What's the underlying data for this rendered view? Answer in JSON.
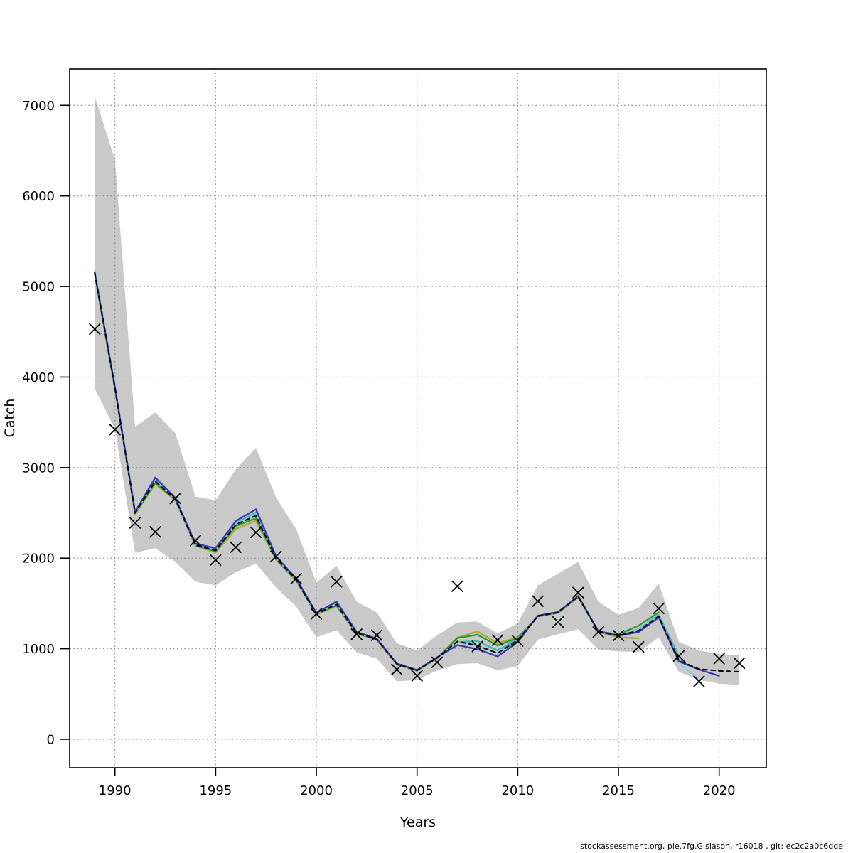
{
  "footer": {
    "text": "stockassessment.org, ple.7fg.Gislason, r16018 , git: ec2c2a0c6dde"
  },
  "chart_data": {
    "type": "line",
    "title": "",
    "xlabel": "Years",
    "ylabel": "Catch",
    "x_ticks": [
      1990,
      1995,
      2000,
      2005,
      2010,
      2015,
      2020
    ],
    "y_ticks": [
      0,
      1000,
      2000,
      3000,
      4000,
      5000,
      6000,
      7000
    ],
    "xlim": [
      1987.7,
      2022.3
    ],
    "ylim": [
      -320,
      7400
    ],
    "grid": "dotted gray, at every tick",
    "legend_position": "none",
    "colors": {
      "band": "#c9c9c9",
      "grid": "#8c8c8c",
      "frame": "#000000",
      "marker": "#000000"
    },
    "band": {
      "name": "confidence-band",
      "color": "#c9c9c9",
      "years": [
        1989,
        1990,
        1991,
        1992,
        1993,
        1994,
        1995,
        1996,
        1997,
        1998,
        1999,
        2000,
        2001,
        2002,
        2003,
        2004,
        2005,
        2006,
        2007,
        2008,
        2009,
        2010,
        2011,
        2012,
        2013,
        2014,
        2015,
        2016,
        2017,
        2018,
        2019,
        2020,
        2021
      ],
      "lower": [
        3870,
        3430,
        2060,
        2110,
        1960,
        1740,
        1700,
        1845,
        1940,
        1675,
        1465,
        1125,
        1205,
        960,
        890,
        640,
        655,
        760,
        830,
        840,
        760,
        810,
        1100,
        1160,
        1215,
        990,
        970,
        965,
        1125,
        745,
        655,
        615,
        600
      ],
      "upper": [
        7100,
        6400,
        3450,
        3610,
        3380,
        2680,
        2640,
        2980,
        3220,
        2670,
        2320,
        1730,
        1915,
        1520,
        1400,
        1060,
        980,
        1150,
        1290,
        1300,
        1170,
        1280,
        1700,
        1830,
        1960,
        1520,
        1375,
        1450,
        1720,
        1075,
        980,
        940,
        930
      ]
    },
    "observations": {
      "name": "observed-catch-points",
      "marker": "x",
      "color": "#000000",
      "years": [
        1989,
        1990,
        1991,
        1992,
        1993,
        1994,
        1995,
        1996,
        1997,
        1998,
        1999,
        2000,
        2001,
        2002,
        2003,
        2004,
        2005,
        2006,
        2007,
        2008,
        2009,
        2010,
        2011,
        2012,
        2013,
        2014,
        2015,
        2016,
        2017,
        2018,
        2019,
        2020,
        2021
      ],
      "values": [
        4530,
        3420,
        2390,
        2290,
        2660,
        2195,
        1980,
        2120,
        2285,
        2020,
        1775,
        1385,
        1740,
        1160,
        1150,
        770,
        700,
        850,
        1690,
        1025,
        1095,
        1085,
        1525,
        1295,
        1620,
        1185,
        1145,
        1020,
        1445,
        920,
        640,
        890,
        840
      ]
    },
    "series": [
      {
        "name": "run-ending-2016-olive",
        "color": "#a9a93a",
        "style": "solid",
        "start_year": 1989,
        "values": [
          5135,
          3870,
          2489,
          2816,
          2641,
          2136,
          2062,
          2322,
          2412,
          1983,
          1749,
          1377,
          1470,
          1166,
          1097,
          826,
          755,
          895,
          1124,
          1190,
          1060,
          1130,
          1356,
          1394,
          1593,
          1184,
          1126,
          1115
        ]
      },
      {
        "name": "run-ending-2017-green",
        "color": "#2e9b2e",
        "style": "solid",
        "start_year": 1989,
        "values": [
          5140,
          3875,
          2494,
          2832,
          2645,
          2140,
          2076,
          2355,
          2440,
          1992,
          1755,
          1381,
          1481,
          1171,
          1101,
          828,
          757,
          897,
          1118,
          1155,
          1035,
          1118,
          1358,
          1397,
          1571,
          1187,
          1160,
          1255,
          1400
        ]
      },
      {
        "name": "run-ending-2018-turquoise",
        "color": "#3cb8b8",
        "style": "solid",
        "start_year": 1989,
        "values": [
          5155,
          3885,
          2505,
          2868,
          2657,
          2152,
          2098,
          2388,
          2505,
          2012,
          1768,
          1391,
          1507,
          1181,
          1108,
          833,
          763,
          903,
          1072,
          1085,
          980,
          1105,
          1363,
          1403,
          1579,
          1193,
          1149,
          1215,
          1375,
          915
        ]
      },
      {
        "name": "run-ending-2019-lightblue",
        "color": "#8fcbea",
        "style": "solid",
        "start_year": 1989,
        "values": [
          5175,
          3882,
          2502,
          2855,
          2652,
          2148,
          2090,
          2375,
          2485,
          2005,
          1763,
          1388,
          1495,
          1178,
          1107,
          832,
          762,
          902,
          1068,
          1028,
          948,
          1090,
          1361,
          1401,
          1577,
          1191,
          1146,
          1210,
          1365,
          845,
          665
        ]
      },
      {
        "name": "run-ending-2020-navy",
        "color": "#3a3ab4",
        "style": "solid",
        "start_year": 1989,
        "values": [
          5150,
          3890,
          2510,
          2890,
          2665,
          2160,
          2110,
          2410,
          2540,
          2020,
          1775,
          1395,
          1520,
          1185,
          1112,
          835,
          765,
          905,
          1040,
          995,
          915,
          1075,
          1365,
          1405,
          1580,
          1195,
          1143,
          1185,
          1345,
          860,
          770,
          700
        ]
      },
      {
        "name": "base-run-ending-2021-black-dashed",
        "color": "#000000",
        "style": "dashed",
        "start_year": 1989,
        "values": [
          5150,
          3880,
          2500,
          2850,
          2650,
          2145,
          2085,
          2370,
          2470,
          2000,
          1760,
          1385,
          1490,
          1175,
          1105,
          830,
          760,
          900,
          1080,
          1035,
          950,
          1095,
          1360,
          1400,
          1575,
          1190,
          1145,
          1200,
          1360,
          870,
          775,
          755,
          745
        ]
      }
    ]
  }
}
